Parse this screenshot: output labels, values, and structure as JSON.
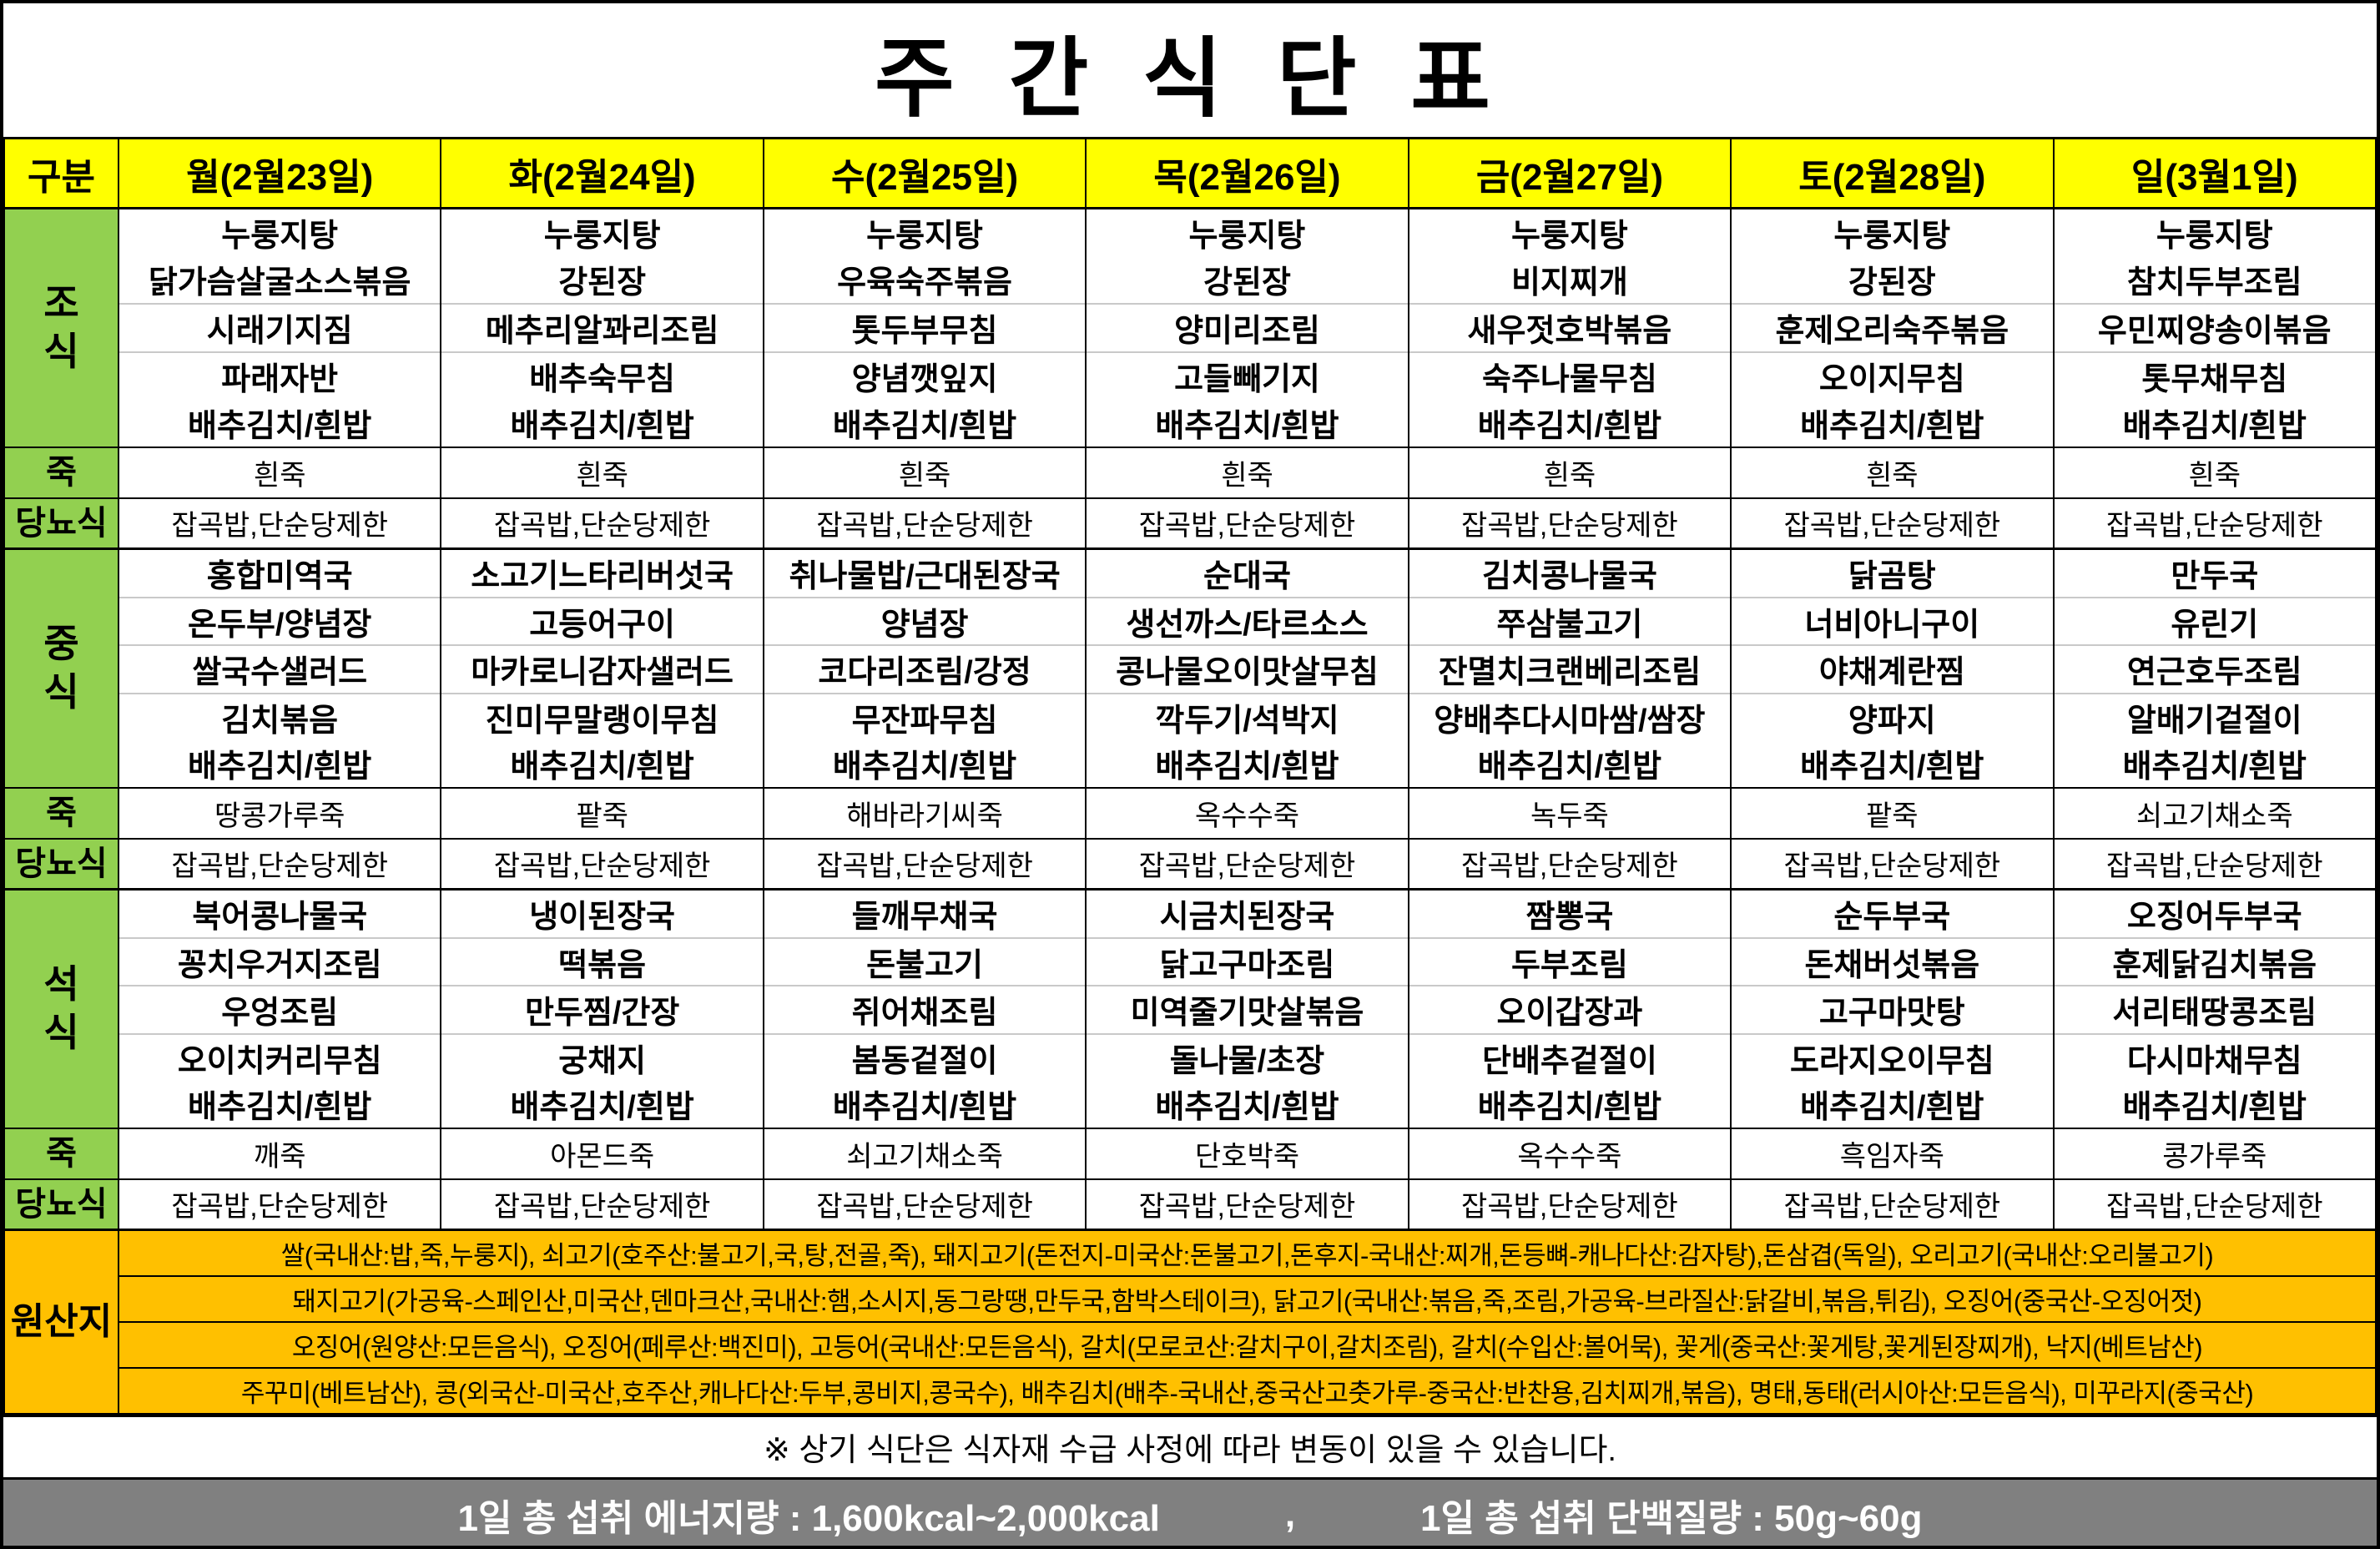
{
  "title": "주 간 식 단 표",
  "colors": {
    "header-yellow": "#ffff00",
    "label-green": "#92d050",
    "origin-orange": "#ffc000",
    "footer-gray": "#808080"
  },
  "header": {
    "corner": "구분",
    "days": [
      "월(2월23일)",
      "화(2월24일)",
      "수(2월25일)",
      "목(2월26일)",
      "금(2월27일)",
      "토(2월28일)",
      "일(3월1일)"
    ]
  },
  "labels": {
    "porridge": "죽",
    "diabetic": "당뇨식",
    "origin": "원산지"
  },
  "sections": [
    {
      "label": "조\n식",
      "menus": [
        [
          "누룽지탕",
          "닭가슴살굴소스볶음",
          "시래기지짐",
          "파래자반",
          "배추김치/흰밥"
        ],
        [
          "누룽지탕",
          "강된장",
          "메추리알꽈리조림",
          "배추숙무침",
          "배추김치/흰밥"
        ],
        [
          "누룽지탕",
          "우육숙주볶음",
          "톳두부무침",
          "양념깻잎지",
          "배추김치/흰밥"
        ],
        [
          "누룽지탕",
          "강된장",
          "양미리조림",
          "고들빼기지",
          "배추김치/흰밥"
        ],
        [
          "누룽지탕",
          "비지찌개",
          "새우젓호박볶음",
          "숙주나물무침",
          "배추김치/흰밥"
        ],
        [
          "누룽지탕",
          "강된장",
          "훈제오리숙주볶음",
          "오이지무침",
          "배추김치/흰밥"
        ],
        [
          "누룽지탕",
          "참치두부조림",
          "우민찌양송이볶음",
          "톳무채무침",
          "배추김치/흰밥"
        ]
      ],
      "porridge": [
        "흰죽",
        "흰죽",
        "흰죽",
        "흰죽",
        "흰죽",
        "흰죽",
        "흰죽"
      ],
      "diabetic": [
        "잡곡밥,단순당제한",
        "잡곡밥,단순당제한",
        "잡곡밥,단순당제한",
        "잡곡밥,단순당제한",
        "잡곡밥,단순당제한",
        "잡곡밥,단순당제한",
        "잡곡밥,단순당제한"
      ]
    },
    {
      "label": "중\n식",
      "menus": [
        [
          "홍합미역국",
          "온두부/양념장",
          "쌀국수샐러드",
          "김치볶음",
          "배추김치/흰밥"
        ],
        [
          "소고기느타리버섯국",
          "고등어구이",
          "마카로니감자샐러드",
          "진미무말랭이무침",
          "배추김치/흰밥"
        ],
        [
          "취나물밥/근대된장국",
          "양념장",
          "코다리조림/강정",
          "무잔파무침",
          "배추김치/흰밥"
        ],
        [
          "순대국",
          "생선까스/타르소스",
          "콩나물오이맛살무침",
          "깍두기/석박지",
          "배추김치/흰밥"
        ],
        [
          "김치콩나물국",
          "쭈삼불고기",
          "잔멸치크랜베리조림",
          "양배추다시마쌈/쌈장",
          "배추김치/흰밥"
        ],
        [
          "닭곰탕",
          "너비아니구이",
          "야채계란찜",
          "양파지",
          "배추김치/흰밥"
        ],
        [
          "만두국",
          "유린기",
          "연근호두조림",
          "알배기겉절이",
          "배추김치/흰밥"
        ]
      ],
      "porridge": [
        "땅콩가루죽",
        "팥죽",
        "해바라기씨죽",
        "옥수수죽",
        "녹두죽",
        "팥죽",
        "쇠고기채소죽"
      ],
      "diabetic": [
        "잡곡밥,단순당제한",
        "잡곡밥,단순당제한",
        "잡곡밥,단순당제한",
        "잡곡밥,단순당제한",
        "잡곡밥,단순당제한",
        "잡곡밥,단순당제한",
        "잡곡밥,단순당제한"
      ]
    },
    {
      "label": "석\n식",
      "menus": [
        [
          "북어콩나물국",
          "꽁치우거지조림",
          "우엉조림",
          "오이치커리무침",
          "배추김치/흰밥"
        ],
        [
          "냉이된장국",
          "떡볶음",
          "만두찜/간장",
          "궁채지",
          "배추김치/흰밥"
        ],
        [
          "들깨무채국",
          "돈불고기",
          "쥐어채조림",
          "봄동겉절이",
          "배추김치/흰밥"
        ],
        [
          "시금치된장국",
          "닭고구마조림",
          "미역줄기맛살볶음",
          "돌나물/초장",
          "배추김치/흰밥"
        ],
        [
          "짬뽕국",
          "두부조림",
          "오이갑장과",
          "단배추겉절이",
          "배추김치/흰밥"
        ],
        [
          "순두부국",
          "돈채버섯볶음",
          "고구마맛탕",
          "도라지오이무침",
          "배추김치/흰밥"
        ],
        [
          "오징어두부국",
          "훈제닭김치볶음",
          "서리태땅콩조림",
          "다시마채무침",
          "배추김치/흰밥"
        ]
      ],
      "porridge": [
        "깨죽",
        "아몬드죽",
        "쇠고기채소죽",
        "단호박죽",
        "옥수수죽",
        "흑임자죽",
        "콩가루죽"
      ],
      "diabetic": [
        "잡곡밥,단순당제한",
        "잡곡밥,단순당제한",
        "잡곡밥,단순당제한",
        "잡곡밥,단순당제한",
        "잡곡밥,단순당제한",
        "잡곡밥,단순당제한",
        "잡곡밥,단순당제한"
      ]
    }
  ],
  "origin_lines": [
    "쌀(국내산:밥,죽,누룽지), 쇠고기(호주산:불고기,국,탕,전골,죽), 돼지고기(돈전지-미국산:돈불고기,돈후지-국내산:찌개,돈등뼈-캐나다산:감자탕),돈삼겹(독일), 오리고기(국내산:오리불고기)",
    "돼지고기(가공육-스페인산,미국산,덴마크산,국내산:햄,소시지,동그랑땡,만두국,함박스테이크), 닭고기(국내산:볶음,죽,조림,가공육-브라질산:닭갈비,볶음,튀김), 오징어(중국산-오징어젓)",
    "오징어(원양산:모든음식), 오징어(페루산:백진미), 고등어(국내산:모든음식), 갈치(모로코산:갈치구이,갈치조림), 갈치(수입산:볼어묵), 꽃게(중국산:꽃게탕,꽃게된장찌개), 낙지(베트남산)",
    "주꾸미(베트남산), 콩(외국산-미국산,호주산,캐나다산:두부,콩비지,콩국수), 배추김치(배추-국내산,중국산고춧가루-중국산:반찬용,김치찌개,볶음), 명태,동태(러시아산:모든음식), 미꾸라지(중국산)"
  ],
  "note": "※ 상기 식단은 식자재 수급 사정에 따라 변동이 있을 수 있습니다.",
  "footer": {
    "energy": "1일 총 섭취 에너지량  :  1,600kcal~2,000kcal",
    "separator": ",",
    "protein": "1일 총 섭취 단백질량 : 50g~60g"
  }
}
